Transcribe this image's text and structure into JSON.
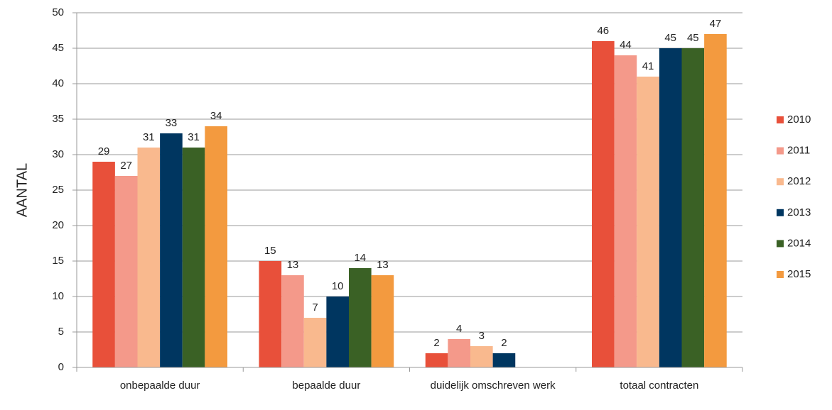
{
  "chart_data": {
    "type": "bar",
    "y_label": "AANTAL",
    "categories": [
      "onbepaalde duur",
      "bepaalde duur",
      "duidelijk omschreven werk",
      "totaal contracten"
    ],
    "series": [
      {
        "name": "2010",
        "color": "#e8503a",
        "values": [
          29,
          15,
          2,
          46
        ]
      },
      {
        "name": "2011",
        "color": "#f4998a",
        "values": [
          27,
          13,
          4,
          44
        ]
      },
      {
        "name": "2012",
        "color": "#f9b98e",
        "values": [
          31,
          7,
          3,
          41
        ]
      },
      {
        "name": "2013",
        "color": "#003660",
        "values": [
          33,
          10,
          2,
          45
        ]
      },
      {
        "name": "2014",
        "color": "#3a6125",
        "values": [
          31,
          14,
          null,
          45
        ]
      },
      {
        "name": "2015",
        "color": "#f39a3f",
        "values": [
          34,
          13,
          null,
          47
        ]
      }
    ],
    "ylim": [
      0,
      50
    ],
    "yticks": [
      0,
      5,
      10,
      15,
      20,
      25,
      30,
      35,
      40,
      45,
      50
    ],
    "grid": true,
    "legend": "right"
  }
}
